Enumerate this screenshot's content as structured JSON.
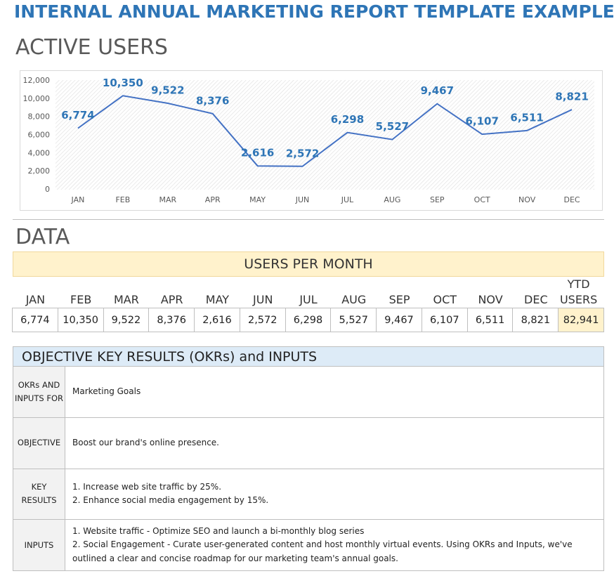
{
  "title": "INTERNAL ANNUAL MARKETING REPORT TEMPLATE EXAMPLE",
  "chart_heading": "ACTIVE USERS",
  "chart_data": {
    "type": "line",
    "categories": [
      "JAN",
      "FEB",
      "MAR",
      "APR",
      "MAY",
      "JUN",
      "JUL",
      "AUG",
      "SEP",
      "OCT",
      "NOV",
      "DEC"
    ],
    "values": [
      6774,
      10350,
      9522,
      8376,
      2616,
      2572,
      6298,
      5527,
      9467,
      6107,
      6511,
      8821
    ],
    "value_labels": [
      "6,774",
      "10,350",
      "9,522",
      "8,376",
      "2,616",
      "2,572",
      "6,298",
      "5,527",
      "9,467",
      "6,107",
      "6,511",
      "8,821"
    ],
    "color": "#4472c4",
    "ylim": [
      0,
      12000
    ],
    "yticks": [
      0,
      {
        "value": 2000,
        "label": "2,000"
      },
      {
        "value": 4000,
        "label": "4,000"
      },
      {
        "value": 6000,
        "label": "6,000"
      },
      {
        "value": 8000,
        "label": "8,000"
      },
      {
        "value": 10000,
        "label": "10,000"
      },
      {
        "value": 12000,
        "label": "12,000"
      }
    ]
  },
  "data_heading": "DATA",
  "table": {
    "title": "USERS PER MONTH",
    "headers": [
      "JAN",
      "FEB",
      "MAR",
      "APR",
      "MAY",
      "JUN",
      "JUL",
      "AUG",
      "SEP",
      "OCT",
      "NOV",
      "DEC",
      "YTD USERS"
    ],
    "values": [
      "6,774",
      "10,350",
      "9,522",
      "8,376",
      "2,616",
      "2,572",
      "6,298",
      "5,527",
      "9,467",
      "6,107",
      "6,511",
      "8,821",
      "82,941"
    ]
  },
  "okr": {
    "title": "OBJECTIVE KEY RESULTS (OKRs) and INPUTS",
    "rows": [
      {
        "label": "OKRs AND INPUTS FOR",
        "lines": [
          "Marketing Goals"
        ]
      },
      {
        "label": "OBJECTIVE",
        "lines": [
          "Boost our brand's online presence."
        ]
      },
      {
        "label": "KEY RESULTS",
        "lines": [
          "1. Increase web site traffic by 25%.",
          "2. Enhance social media engagement by 15%."
        ]
      },
      {
        "label": "INPUTS",
        "lines": [
          "1. Website traffic - Optimize SEO and launch a bi-monthly blog series",
          "2. Social Engagement - Curate user-generated content and host monthly virtual events. Using OKRs and Inputs, we've outlined a clear and concise roadmap for our marketing team's annual goals."
        ]
      }
    ]
  }
}
